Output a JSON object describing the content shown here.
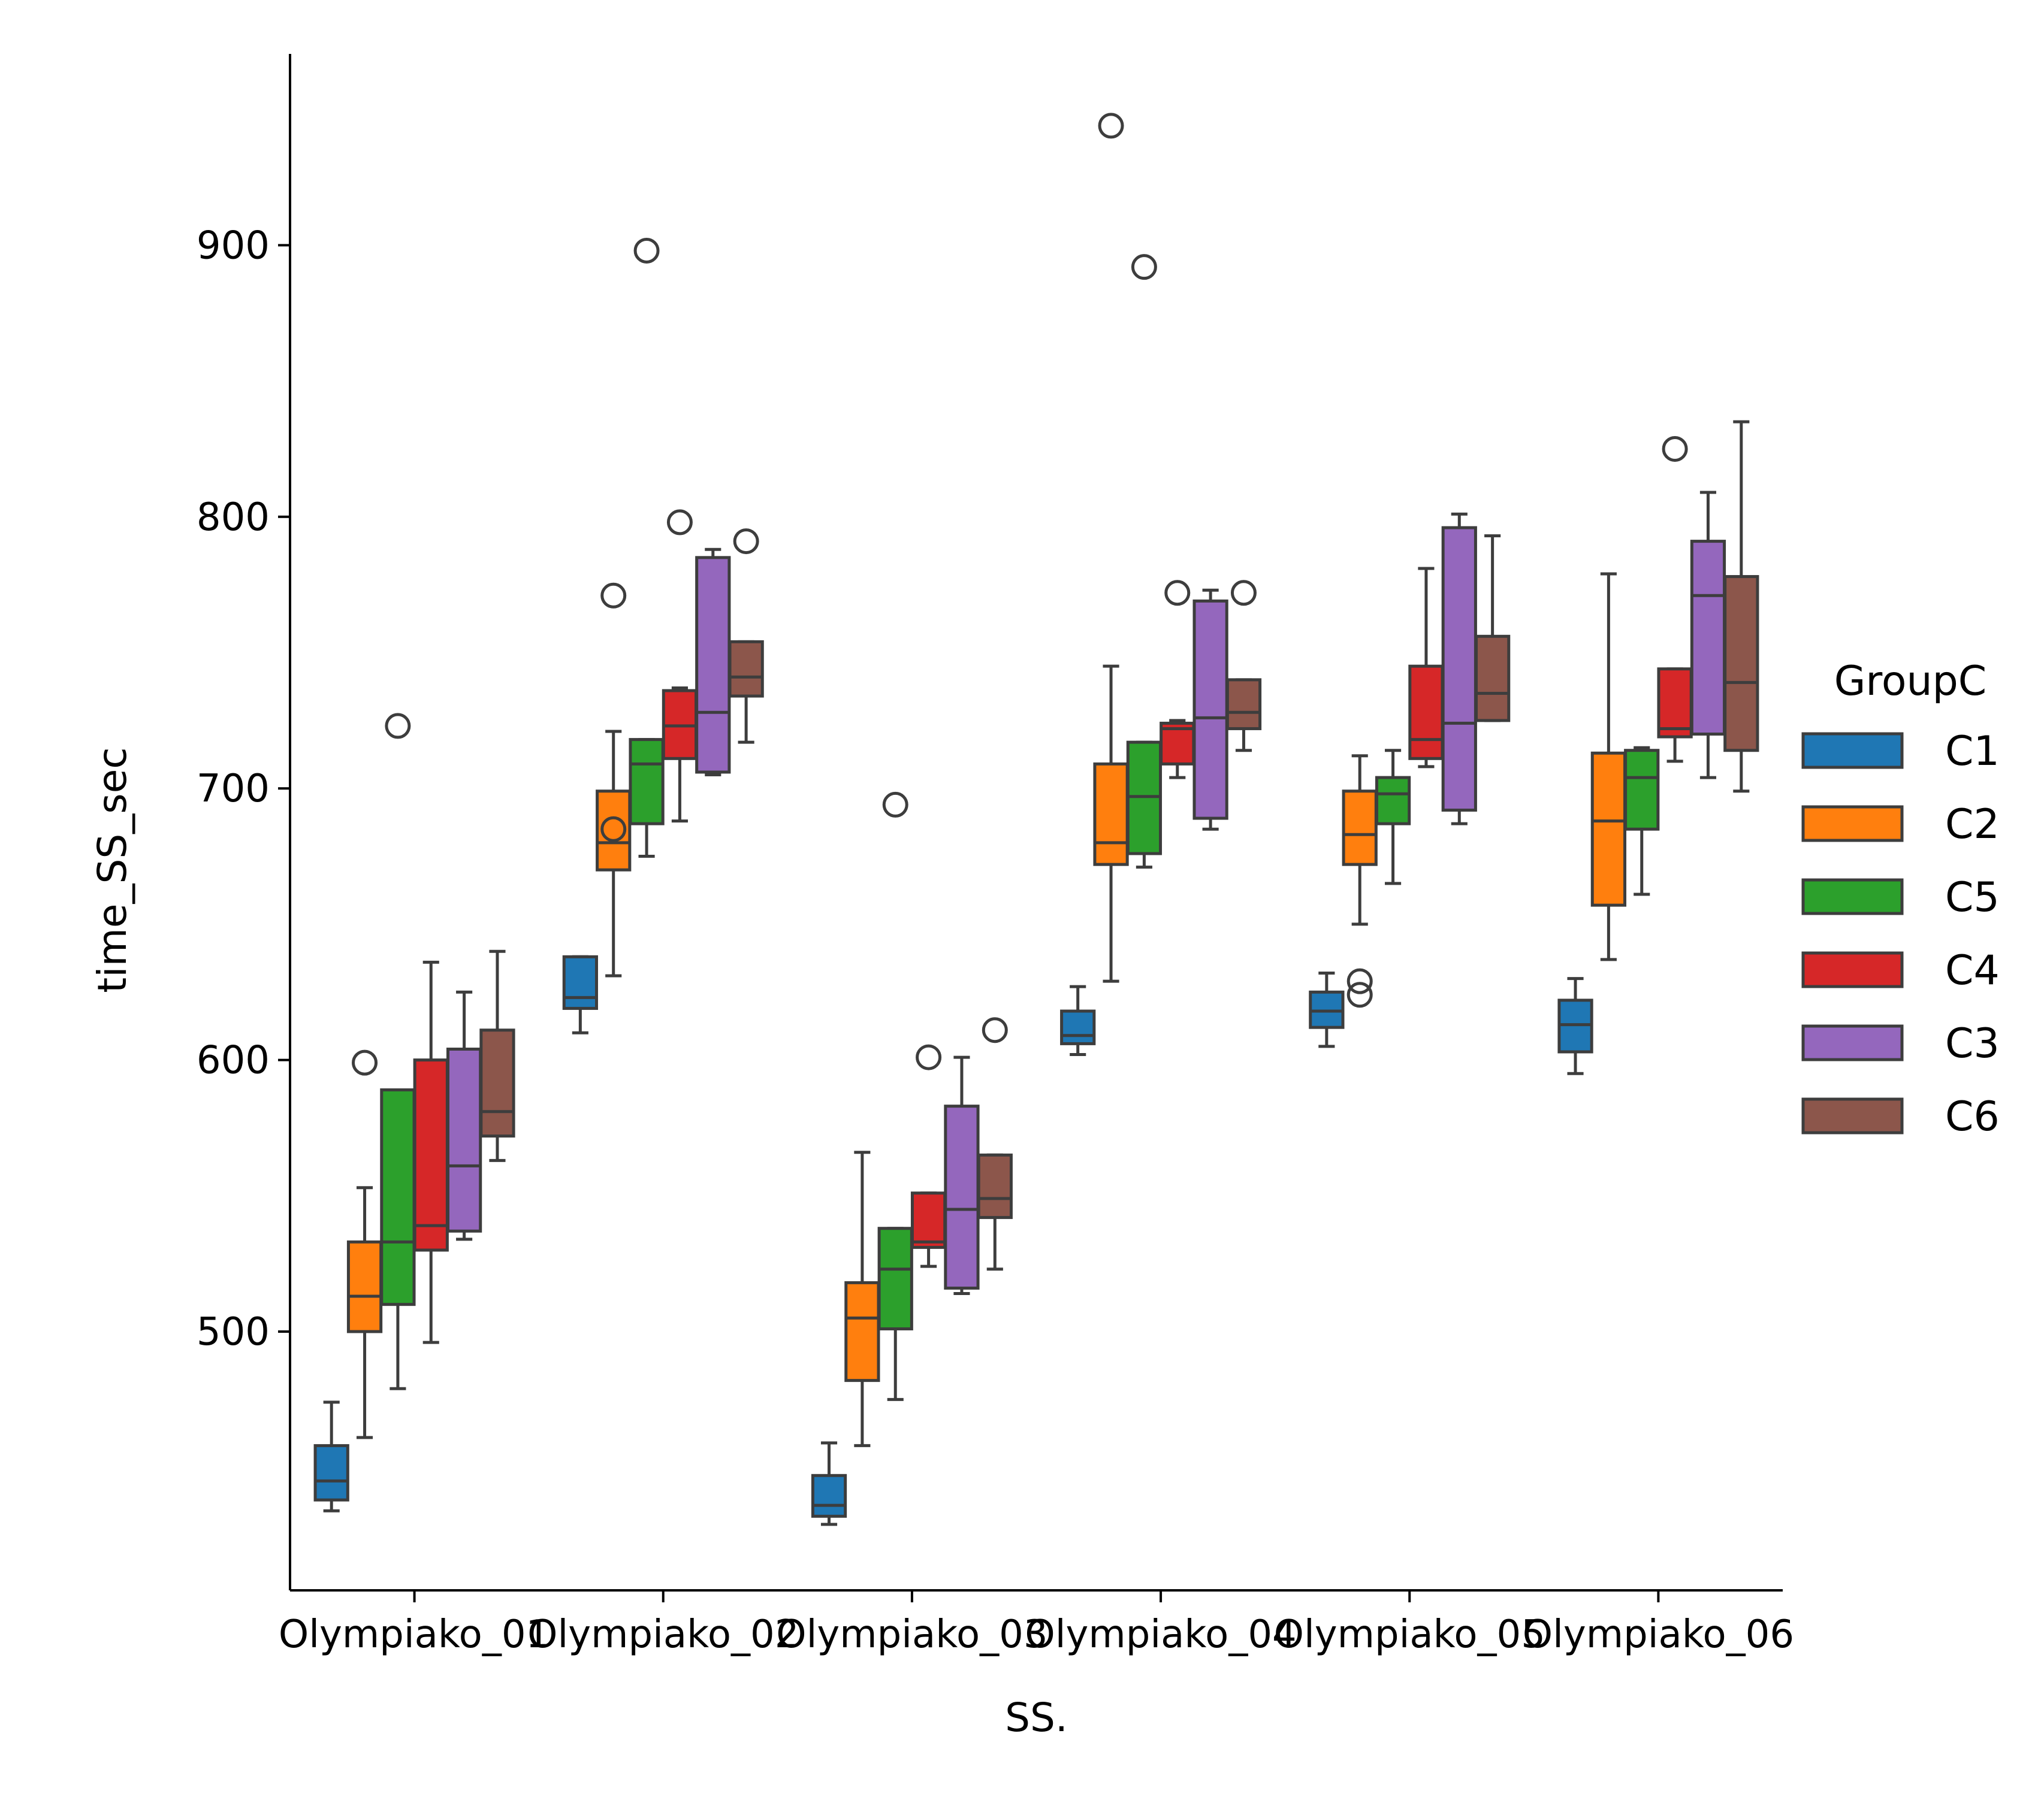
{
  "chart_data": {
    "type": "box",
    "title": "",
    "xlabel": "SS.",
    "ylabel": "time_SS_sec",
    "categories": [
      "Olympiako_01",
      "Olympiako_02",
      "Olympiako_03",
      "Olympiako_04",
      "Olympiako_05",
      "Olympiako_06"
    ],
    "ylim": [
      405,
      970
    ],
    "yticks": [
      500,
      600,
      700,
      800,
      900
    ],
    "grid": false,
    "legend": {
      "title": "GroupC",
      "position": "right"
    },
    "series": [
      {
        "name": "C1",
        "color": "#1f77b4",
        "boxes": [
          {
            "whislo": 434,
            "q1": 438,
            "med": 445,
            "q3": 458,
            "whishi": 474,
            "fliers": []
          },
          {
            "whislo": 610,
            "q1": 619,
            "med": 623,
            "q3": 638,
            "whishi": 638,
            "fliers": []
          },
          {
            "whislo": 429,
            "q1": 432,
            "med": 436,
            "q3": 447,
            "whishi": 459,
            "fliers": []
          },
          {
            "whislo": 602,
            "q1": 606,
            "med": 609,
            "q3": 618,
            "whishi": 627,
            "fliers": []
          },
          {
            "whislo": 605,
            "q1": 612,
            "med": 618,
            "q3": 625,
            "whishi": 632,
            "fliers": []
          },
          {
            "whislo": 595,
            "q1": 603,
            "med": 613,
            "q3": 622,
            "whishi": 630,
            "fliers": []
          }
        ]
      },
      {
        "name": "C2",
        "color": "#ff7f0e",
        "boxes": [
          {
            "whislo": 461,
            "q1": 500,
            "med": 513,
            "q3": 533,
            "whishi": 553,
            "fliers": [
              599
            ]
          },
          {
            "whislo": 631,
            "q1": 670,
            "med": 680,
            "q3": 699,
            "whishi": 721,
            "fliers": [
              685,
              771
            ]
          },
          {
            "whislo": 458,
            "q1": 482,
            "med": 505,
            "q3": 518,
            "whishi": 566,
            "fliers": []
          },
          {
            "whislo": 629,
            "q1": 672,
            "med": 680,
            "q3": 709,
            "whishi": 745,
            "fliers": [
              944
            ]
          },
          {
            "whislo": 650,
            "q1": 672,
            "med": 683,
            "q3": 699,
            "whishi": 712,
            "fliers": [
              629,
              624
            ]
          },
          {
            "whislo": 637,
            "q1": 657,
            "med": 688,
            "q3": 713,
            "whishi": 779,
            "fliers": []
          }
        ]
      },
      {
        "name": "C5",
        "color": "#2ca02c",
        "boxes": [
          {
            "whislo": 479,
            "q1": 510,
            "med": 533,
            "q3": 589,
            "whishi": 589,
            "fliers": [
              723
            ]
          },
          {
            "whislo": 675,
            "q1": 687,
            "med": 709,
            "q3": 718,
            "whishi": 718,
            "fliers": [
              898
            ]
          },
          {
            "whislo": 475,
            "q1": 501,
            "med": 523,
            "q3": 538,
            "whishi": 538,
            "fliers": [
              694
            ]
          },
          {
            "whislo": 671,
            "q1": 676,
            "med": 697,
            "q3": 717,
            "whishi": 717,
            "fliers": [
              892
            ]
          },
          {
            "whislo": 665,
            "q1": 687,
            "med": 698,
            "q3": 704,
            "whishi": 714,
            "fliers": []
          },
          {
            "whislo": 661,
            "q1": 685,
            "med": 704,
            "q3": 714,
            "whishi": 715,
            "fliers": []
          }
        ]
      },
      {
        "name": "C4",
        "color": "#d62728",
        "boxes": [
          {
            "whislo": 496,
            "q1": 530,
            "med": 539,
            "q3": 600,
            "whishi": 636,
            "fliers": []
          },
          {
            "whislo": 688,
            "q1": 711,
            "med": 723,
            "q3": 736,
            "whishi": 737,
            "fliers": [
              798
            ]
          },
          {
            "whislo": 524,
            "q1": 531,
            "med": 533,
            "q3": 551,
            "whishi": 551,
            "fliers": [
              601
            ]
          },
          {
            "whislo": 704,
            "q1": 709,
            "med": 722,
            "q3": 724,
            "whishi": 725,
            "fliers": [
              772
            ]
          },
          {
            "whislo": 708,
            "q1": 711,
            "med": 718,
            "q3": 745,
            "whishi": 781,
            "fliers": []
          },
          {
            "whislo": 710,
            "q1": 719,
            "med": 722,
            "q3": 744,
            "whishi": 744,
            "fliers": [
              825
            ]
          }
        ]
      },
      {
        "name": "C3",
        "color": "#9467bd",
        "boxes": [
          {
            "whislo": 534,
            "q1": 537,
            "med": 561,
            "q3": 604,
            "whishi": 625,
            "fliers": []
          },
          {
            "whislo": 705,
            "q1": 706,
            "med": 728,
            "q3": 785,
            "whishi": 788,
            "fliers": []
          },
          {
            "whislo": 514,
            "q1": 516,
            "med": 545,
            "q3": 583,
            "whishi": 601,
            "fliers": []
          },
          {
            "whislo": 685,
            "q1": 689,
            "med": 726,
            "q3": 769,
            "whishi": 773,
            "fliers": []
          },
          {
            "whislo": 687,
            "q1": 692,
            "med": 724,
            "q3": 796,
            "whishi": 801,
            "fliers": []
          },
          {
            "whislo": 704,
            "q1": 720,
            "med": 771,
            "q3": 791,
            "whishi": 809,
            "fliers": []
          }
        ]
      },
      {
        "name": "C6",
        "color": "#8c564b",
        "boxes": [
          {
            "whislo": 563,
            "q1": 572,
            "med": 581,
            "q3": 611,
            "whishi": 640,
            "fliers": []
          },
          {
            "whislo": 717,
            "q1": 734,
            "med": 741,
            "q3": 754,
            "whishi": 754,
            "fliers": [
              791
            ]
          },
          {
            "whislo": 523,
            "q1": 542,
            "med": 549,
            "q3": 565,
            "whishi": 565,
            "fliers": [
              611
            ]
          },
          {
            "whislo": 714,
            "q1": 722,
            "med": 728,
            "q3": 740,
            "whishi": 740,
            "fliers": [
              772
            ]
          },
          {
            "whislo": 725,
            "q1": 725,
            "med": 735,
            "q3": 756,
            "whishi": 793,
            "fliers": []
          },
          {
            "whislo": 699,
            "q1": 714,
            "med": 739,
            "q3": 778,
            "whishi": 835,
            "fliers": []
          }
        ]
      }
    ]
  }
}
